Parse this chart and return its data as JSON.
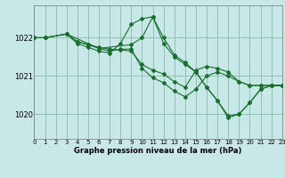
{
  "bg_color": "#c8e8e8",
  "grid_color": "#88bbaa",
  "line_color": "#1a6e2e",
  "xlabel": "Graphe pression niveau de la mer (hPa)",
  "xlim": [
    0,
    23
  ],
  "ylim": [
    1019.35,
    1022.85
  ],
  "yticks": [
    1020,
    1021,
    1022
  ],
  "xticks": [
    0,
    1,
    2,
    3,
    4,
    5,
    6,
    7,
    8,
    9,
    10,
    11,
    12,
    13,
    14,
    15,
    16,
    17,
    18,
    19,
    20,
    21,
    22,
    23
  ],
  "series": [
    {
      "x": [
        0,
        1,
        3,
        4,
        5,
        6,
        7,
        8,
        9,
        10,
        11,
        12,
        13,
        14,
        15,
        16,
        17,
        18,
        19,
        20,
        21,
        22,
        23
      ],
      "y": [
        1022.0,
        1022.0,
        1022.1,
        1021.85,
        1021.75,
        1021.65,
        1021.6,
        1021.85,
        1022.35,
        1022.5,
        1022.55,
        1022.0,
        1021.55,
        1021.35,
        1021.1,
        1020.7,
        1020.35,
        1019.95,
        1020.0,
        1020.3,
        1020.65,
        1020.75,
        1020.75
      ]
    },
    {
      "x": [
        0,
        1,
        3,
        4,
        5,
        6,
        7,
        8,
        9,
        10,
        11,
        12,
        13,
        14,
        15,
        16,
        17,
        18,
        19,
        20,
        21,
        22,
        23
      ],
      "y": [
        1022.0,
        1022.0,
        1022.1,
        1021.9,
        1021.82,
        1021.75,
        1021.7,
        1021.68,
        1021.65,
        1021.3,
        1021.15,
        1021.05,
        1020.85,
        1020.7,
        1021.15,
        1021.25,
        1021.2,
        1021.1,
        1020.85,
        1020.75,
        1020.75,
        1020.75,
        1020.75
      ]
    },
    {
      "x": [
        3,
        4,
        5,
        6,
        7,
        8,
        9,
        10,
        11,
        12,
        13,
        14,
        15,
        16,
        17,
        18,
        19,
        20,
        21,
        22,
        23
      ],
      "y": [
        1022.1,
        1021.9,
        1021.82,
        1021.72,
        1021.65,
        1021.7,
        1021.7,
        1021.2,
        1020.95,
        1020.82,
        1020.6,
        1020.45,
        1020.65,
        1021.0,
        1021.1,
        1021.0,
        1020.85,
        1020.75,
        1020.75,
        1020.75,
        1020.75
      ]
    },
    {
      "x": [
        0,
        1,
        3,
        6,
        9,
        10,
        11,
        12,
        13,
        14,
        15,
        16,
        17,
        18,
        19,
        20,
        21,
        22,
        23
      ],
      "y": [
        1022.0,
        1022.0,
        1022.1,
        1021.72,
        1021.82,
        1022.0,
        1022.55,
        1021.85,
        1021.5,
        1021.3,
        1021.1,
        1020.7,
        1020.35,
        1019.9,
        1020.0,
        1020.3,
        1020.65,
        1020.75,
        1020.75
      ]
    }
  ],
  "xlabel_fontsize": 6.0,
  "xlabel_fontweight": "bold",
  "xtick_fontsize": 5.0,
  "ytick_fontsize": 6.0
}
